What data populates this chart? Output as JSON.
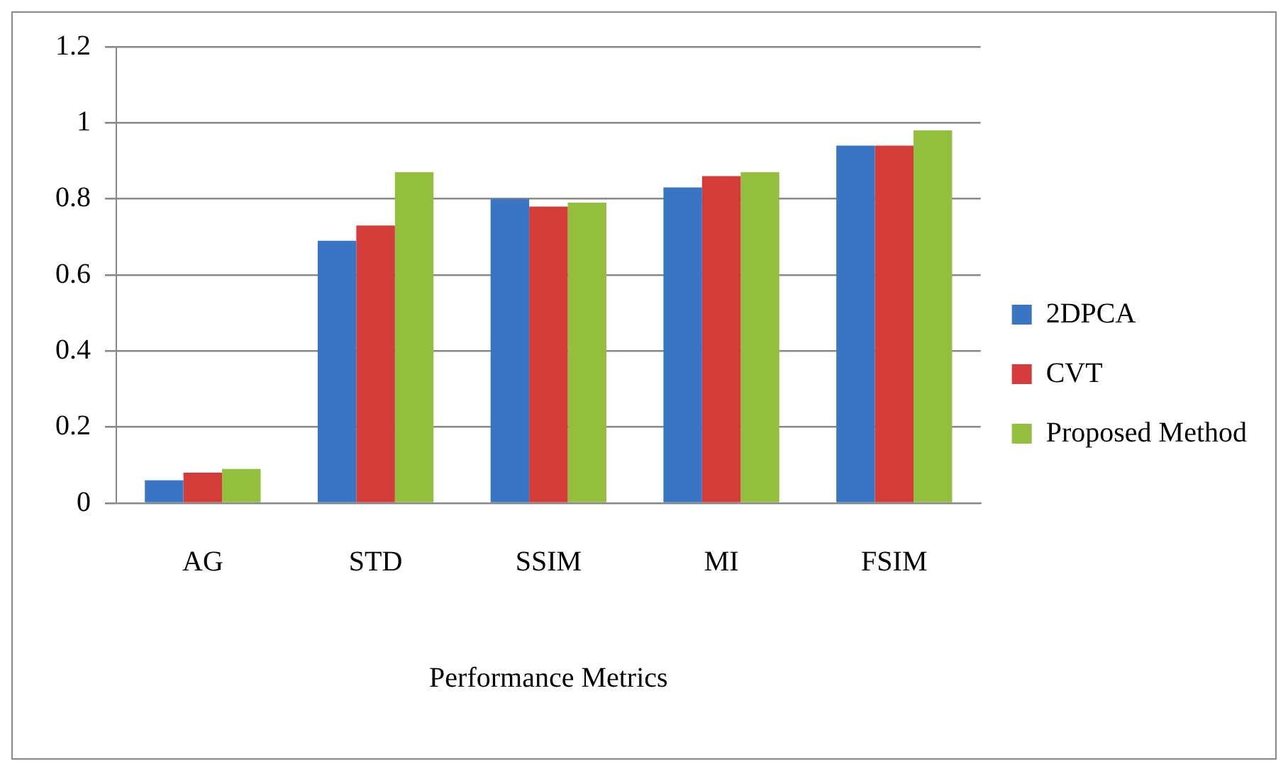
{
  "chart_data": {
    "type": "bar",
    "xlabel": "Performance Metrics",
    "categories": [
      "AG",
      "STD",
      "SSIM",
      "MI",
      "FSIM"
    ],
    "series": [
      {
        "name": "2DPCA",
        "color": "#3a75c4",
        "values": [
          0.06,
          0.69,
          0.8,
          0.83,
          0.94
        ]
      },
      {
        "name": "CVT",
        "color": "#d43c3a",
        "values": [
          0.08,
          0.73,
          0.78,
          0.86,
          0.94
        ]
      },
      {
        "name": "Proposed Method",
        "color": "#94bf3e",
        "values": [
          0.09,
          0.87,
          0.79,
          0.87,
          0.98
        ]
      }
    ],
    "ylim": [
      0,
      1.2
    ],
    "yticks": [
      0,
      0.2,
      0.4,
      0.6,
      0.8,
      1,
      1.2
    ],
    "grid": "y",
    "legend": "right"
  }
}
